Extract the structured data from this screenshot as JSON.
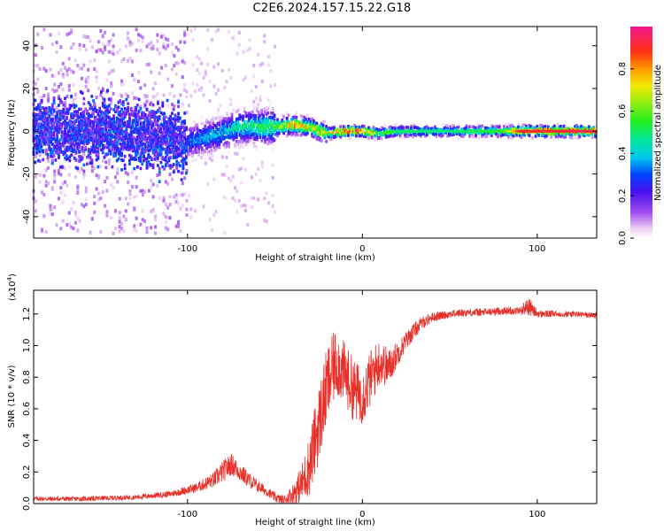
{
  "page": {
    "title": "C2E6.2024.157.15.22.G18"
  },
  "chart_data": [
    {
      "type": "heatmap",
      "title": "C2E6.2024.157.15.22.G18",
      "xlabel": "Height of straight line (km)",
      "ylabel": "Frequency (Hz)",
      "xlim": [
        -188,
        134
      ],
      "ylim": [
        -50,
        49
      ],
      "xticks": [
        -100,
        0,
        100
      ],
      "yticks": [
        -40,
        -20,
        0,
        20,
        40
      ],
      "colorbar": {
        "label": "Normalized spectral amplitude",
        "range": [
          0,
          1
        ],
        "ticks": [
          "0.0",
          "0.2",
          "0.4",
          "0.6",
          "0.8"
        ],
        "tick_values": [
          0,
          0.2,
          0.4,
          0.6,
          0.8
        ]
      },
      "trace": {
        "description_points": [
          {
            "x": -180,
            "f": 0,
            "amp": 0.12
          },
          {
            "x": -140,
            "f": 0,
            "amp": 0.15
          },
          {
            "x": -110,
            "f": -4,
            "amp": 0.2
          },
          {
            "x": -100,
            "f": -5,
            "amp": 0.32
          },
          {
            "x": -85,
            "f": -2,
            "amp": 0.38
          },
          {
            "x": -70,
            "f": 2,
            "amp": 0.45
          },
          {
            "x": -50,
            "f": 2,
            "amp": 0.55
          },
          {
            "x": -40,
            "f": 3,
            "amp": 0.78
          },
          {
            "x": -30,
            "f": 2,
            "amp": 0.7
          },
          {
            "x": -20,
            "f": -1,
            "amp": 0.72
          },
          {
            "x": -10,
            "f": 0,
            "amp": 0.85
          },
          {
            "x": 0,
            "f": 0,
            "amp": 0.9
          },
          {
            "x": 10,
            "f": -1,
            "amp": 0.6
          },
          {
            "x": 20,
            "f": 0,
            "amp": 0.5
          },
          {
            "x": 50,
            "f": 0,
            "amp": 0.48
          },
          {
            "x": 80,
            "f": 0,
            "amp": 0.55
          },
          {
            "x": 90,
            "f": 0,
            "amp": 0.9
          },
          {
            "x": 134,
            "f": 0,
            "amp": 0.92
          }
        ]
      }
    },
    {
      "type": "line",
      "xlabel": "Height of straight line (km)",
      "ylabel": "SNR (10 * v/v)",
      "ylabel_scale": "(x10",
      "ylabel_scale_exp": "4",
      "ylabel_scale_close": ")",
      "xlim": [
        -188,
        134
      ],
      "ylim": [
        0,
        1.35
      ],
      "xticks": [
        -100,
        0,
        100
      ],
      "yticks": [
        "0.0",
        "0.2",
        "0.4",
        "0.6",
        "0.8",
        "1.0",
        "1.2"
      ],
      "ytick_values": [
        0,
        0.2,
        0.4,
        0.6,
        0.8,
        1.0,
        1.2
      ],
      "color": "#e8302a",
      "series": [
        {
          "x": [
            -188,
            -160,
            -130,
            -110,
            -95,
            -85,
            -80,
            -75,
            -70,
            -65,
            -60,
            -55,
            -50,
            -45,
            -40,
            -35,
            -30,
            -25,
            -20,
            -15,
            -10,
            -5,
            0,
            5,
            10,
            15,
            20,
            25,
            30,
            35,
            40,
            50,
            60,
            70,
            80,
            90,
            95,
            100,
            110,
            120,
            134
          ],
          "values": [
            0.03,
            0.03,
            0.04,
            0.06,
            0.1,
            0.15,
            0.2,
            0.25,
            0.2,
            0.15,
            0.11,
            0.08,
            0.04,
            0.02,
            0.06,
            0.12,
            0.25,
            0.5,
            0.75,
            0.9,
            0.82,
            0.72,
            0.68,
            0.8,
            0.9,
            0.86,
            0.95,
            1.03,
            1.1,
            1.15,
            1.18,
            1.2,
            1.21,
            1.21,
            1.22,
            1.22,
            1.25,
            1.2,
            1.2,
            1.2,
            1.19
          ],
          "noise": [
            0.015,
            0.015,
            0.015,
            0.02,
            0.03,
            0.05,
            0.07,
            0.07,
            0.06,
            0.05,
            0.04,
            0.03,
            0.03,
            0.03,
            0.06,
            0.12,
            0.2,
            0.25,
            0.25,
            0.22,
            0.2,
            0.2,
            0.18,
            0.18,
            0.15,
            0.12,
            0.08,
            0.06,
            0.05,
            0.04,
            0.03,
            0.025,
            0.025,
            0.025,
            0.025,
            0.025,
            0.06,
            0.025,
            0.02,
            0.02,
            0.02
          ]
        }
      ]
    }
  ]
}
